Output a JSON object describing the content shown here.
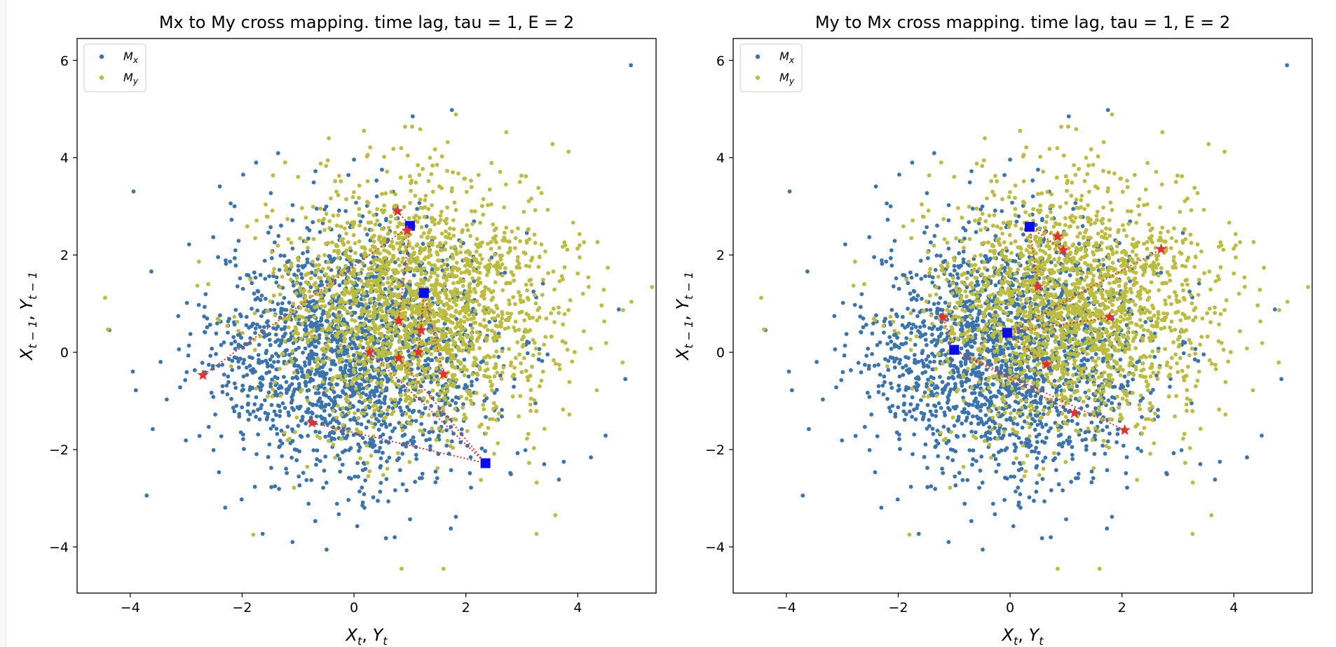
{
  "chart_data": [
    {
      "type": "scatter",
      "title": "Mx to My cross mapping. time lag, tau = 1, E = 2",
      "xlabel": {
        "a": "X",
        "a_sub": "t",
        "sep": ", ",
        "b": "Y",
        "b_sub": "t"
      },
      "ylabel": {
        "a": "X",
        "a_sub": "t − 1",
        "sep": ", ",
        "b": "Y",
        "b_sub": "t − 1"
      },
      "xlim": [
        -4.95,
        5.4
      ],
      "ylim": [
        -4.95,
        6.45
      ],
      "xticks": [
        -4,
        -2,
        0,
        2,
        4
      ],
      "yticks": [
        -4,
        -2,
        0,
        2,
        4,
        6
      ],
      "xtick_labels": [
        "−4",
        "−2",
        "0",
        "2",
        "4"
      ],
      "ytick_labels": [
        "−4",
        "−2",
        "0",
        "2",
        "4",
        "6"
      ],
      "legend": {
        "position": "top-left",
        "entries": [
          {
            "name": "M",
            "sub": "x",
            "color": "#3a74b0"
          },
          {
            "name": "M",
            "sub": "y",
            "color": "#bcbd3c"
          }
        ]
      },
      "series": [
        {
          "name": "Mx",
          "color": "#3a74b0",
          "n_points": 2000,
          "mean": [
            0,
            0
          ],
          "sd": 1.25,
          "outliers": [
            [
              4.95,
              5.9
            ],
            [
              1.75,
              4.98
            ],
            [
              1.05,
              4.85
            ],
            [
              -1.1,
              -3.9
            ],
            [
              -3.9,
              -0.78
            ],
            [
              4.85,
              -0.55
            ],
            [
              -1.75,
              3.9
            ],
            [
              0.7,
              3.3
            ],
            [
              3.4,
              -2.3
            ]
          ]
        },
        {
          "name": "My",
          "color": "#bcbd3c",
          "n_points": 2000,
          "mean": [
            1.05,
            0.95
          ],
          "sd": 1.25,
          "outliers": [
            [
              -4.45,
              1.12
            ],
            [
              -4.4,
              0.47
            ],
            [
              0.85,
              -4.45
            ],
            [
              1.6,
              -4.45
            ],
            [
              -1.8,
              -3.75
            ],
            [
              -0.45,
              4.4
            ],
            [
              3.6,
              -3.35
            ]
          ]
        }
      ],
      "neighbors": [
        {
          "square": [
            1.0,
            2.6
          ],
          "stars": [
            [
              0.78,
              2.9
            ],
            [
              0.95,
              2.5
            ],
            [
              0.8,
              0.65
            ]
          ]
        },
        {
          "square": [
            1.25,
            1.22
          ],
          "stars": [
            [
              1.2,
              0.45
            ],
            [
              1.15,
              0.0
            ],
            [
              1.6,
              -0.45
            ]
          ]
        },
        {
          "square": [
            2.35,
            -2.28
          ],
          "stars": [
            [
              0.28,
              0.0
            ],
            [
              -0.75,
              -1.45
            ],
            [
              0.8,
              -0.12
            ]
          ]
        }
      ],
      "outlier_star": [
        -2.7,
        -0.47
      ],
      "outlier_line_to": [
        1.0,
        2.6
      ]
    },
    {
      "type": "scatter",
      "title": "My to Mx cross mapping. time lag, tau = 1, E = 2",
      "xlabel": {
        "a": "X",
        "a_sub": "t",
        "sep": ", ",
        "b": "Y",
        "b_sub": "t"
      },
      "ylabel": {
        "a": "X",
        "a_sub": "t − 1",
        "sep": ", ",
        "b": "Y",
        "b_sub": "t − 1"
      },
      "xlim": [
        -4.95,
        5.4
      ],
      "ylim": [
        -4.95,
        6.45
      ],
      "xticks": [
        -4,
        -2,
        0,
        2,
        4
      ],
      "yticks": [
        -4,
        -2,
        0,
        2,
        4,
        6
      ],
      "xtick_labels": [
        "−4",
        "−2",
        "0",
        "2",
        "4"
      ],
      "ytick_labels": [
        "−4",
        "−2",
        "0",
        "2",
        "4",
        "6"
      ],
      "legend": {
        "position": "top-left",
        "entries": [
          {
            "name": "M",
            "sub": "x",
            "color": "#3a74b0"
          },
          {
            "name": "M",
            "sub": "y",
            "color": "#bcbd3c"
          }
        ]
      },
      "series": [
        {
          "name": "Mx",
          "color": "#3a74b0",
          "n_points": 2000,
          "mean": [
            0,
            0
          ],
          "sd": 1.25,
          "outliers": [
            [
              4.95,
              5.9
            ],
            [
              1.75,
              4.98
            ],
            [
              1.05,
              4.85
            ],
            [
              -1.1,
              -3.9
            ],
            [
              -3.9,
              -0.78
            ],
            [
              4.85,
              -0.55
            ],
            [
              -1.75,
              3.9
            ],
            [
              0.7,
              3.3
            ],
            [
              3.4,
              -2.3
            ]
          ]
        },
        {
          "name": "My",
          "color": "#bcbd3c",
          "n_points": 2000,
          "mean": [
            1.05,
            0.95
          ],
          "sd": 1.25,
          "outliers": [
            [
              -4.45,
              1.12
            ],
            [
              -4.4,
              0.47
            ],
            [
              0.85,
              -4.45
            ],
            [
              1.6,
              -4.45
            ],
            [
              -1.8,
              -3.75
            ],
            [
              -0.45,
              4.4
            ],
            [
              3.6,
              -3.35
            ]
          ]
        }
      ],
      "neighbors": [
        {
          "square": [
            0.35,
            2.58
          ],
          "stars": [
            [
              0.85,
              2.38
            ],
            [
              0.95,
              2.1
            ],
            [
              0.5,
              1.35
            ]
          ]
        },
        {
          "square": [
            -0.05,
            0.4
          ],
          "stars": [
            [
              2.7,
              2.12
            ],
            [
              1.78,
              0.72
            ],
            [
              0.65,
              -0.25
            ]
          ]
        },
        {
          "square": [
            -1.0,
            0.05
          ],
          "stars": [
            [
              -1.2,
              0.72
            ],
            [
              1.15,
              -1.25
            ],
            [
              2.05,
              -1.6
            ]
          ]
        }
      ]
    }
  ]
}
